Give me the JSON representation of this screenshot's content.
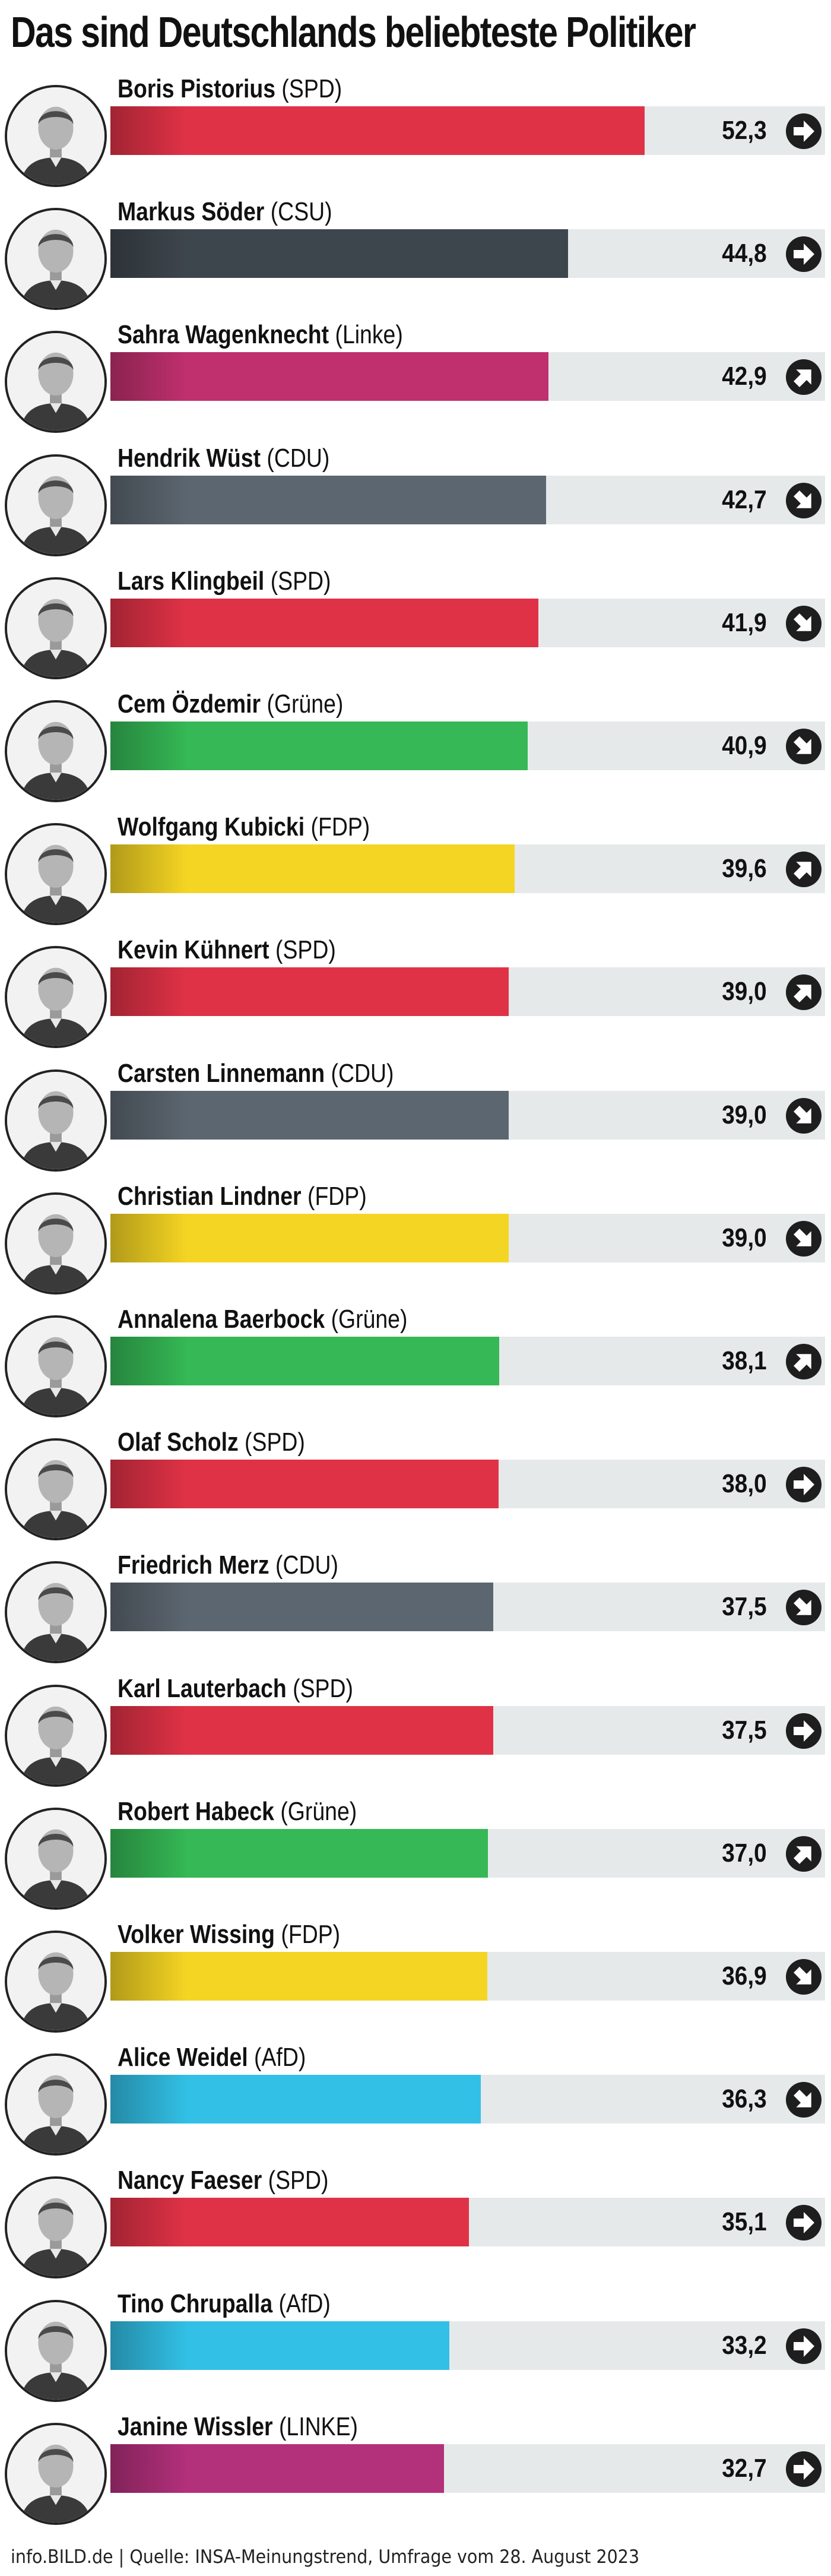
{
  "title": "Das sind Deutschlands beliebteste Politiker",
  "source": "info.BILD.de | Quelle: INSA-Meinungstrend, Umfrage vom 28. August 2023",
  "colors": {
    "SPD": "#e03246",
    "CSU": "#3e464d",
    "Linke": "#c0306e",
    "CDU": "#5c6670",
    "Grüne": "#35b855",
    "FDP": "#f5d523",
    "AfD": "#32c0e6",
    "LINKE": "#b3307b",
    "track": "#e6e9ea",
    "arrow_bg": "#1e1e1e"
  },
  "chart_data": {
    "type": "bar",
    "orientation": "horizontal",
    "title": "Das sind Deutschlands beliebteste Politiker",
    "xlim": [
      0,
      70
    ],
    "grid": false,
    "rows": [
      {
        "name": "Boris Pistorius",
        "party": "(SPD)",
        "party_key": "SPD",
        "value": 52.3,
        "value_label": "52,3",
        "trend": "right",
        "trend_icon": "arrow-right-icon"
      },
      {
        "name": "Markus Söder",
        "party": "(CSU)",
        "party_key": "CSU",
        "value": 44.8,
        "value_label": "44,8",
        "trend": "right",
        "trend_icon": "arrow-right-icon"
      },
      {
        "name": "Sahra Wagenknecht",
        "party": "(Linke)",
        "party_key": "Linke",
        "value": 42.9,
        "value_label": "42,9",
        "trend": "up",
        "trend_icon": "arrow-up-right-icon"
      },
      {
        "name": "Hendrik Wüst",
        "party": "(CDU)",
        "party_key": "CDU",
        "value": 42.7,
        "value_label": "42,7",
        "trend": "down",
        "trend_icon": "arrow-down-right-icon"
      },
      {
        "name": "Lars Klingbeil",
        "party": "(SPD)",
        "party_key": "SPD",
        "value": 41.9,
        "value_label": "41,9",
        "trend": "down",
        "trend_icon": "arrow-down-right-icon"
      },
      {
        "name": "Cem Özdemir",
        "party": "(Grüne)",
        "party_key": "Grüne",
        "value": 40.9,
        "value_label": "40,9",
        "trend": "down",
        "trend_icon": "arrow-down-right-icon"
      },
      {
        "name": "Wolfgang Kubicki",
        "party": "(FDP)",
        "party_key": "FDP",
        "value": 39.6,
        "value_label": "39,6",
        "trend": "up",
        "trend_icon": "arrow-up-right-icon"
      },
      {
        "name": "Kevin Kühnert",
        "party": "(SPD)",
        "party_key": "SPD",
        "value": 39.0,
        "value_label": "39,0",
        "trend": "up",
        "trend_icon": "arrow-up-right-icon"
      },
      {
        "name": "Carsten Linnemann",
        "party": "(CDU)",
        "party_key": "CDU",
        "value": 39.0,
        "value_label": "39,0",
        "trend": "down",
        "trend_icon": "arrow-down-right-icon"
      },
      {
        "name": "Christian Lindner",
        "party": "(FDP)",
        "party_key": "FDP",
        "value": 39.0,
        "value_label": "39,0",
        "trend": "down",
        "trend_icon": "arrow-down-right-icon"
      },
      {
        "name": "Annalena Baerbock",
        "party": "(Grüne)",
        "party_key": "Grüne",
        "value": 38.1,
        "value_label": "38,1",
        "trend": "up",
        "trend_icon": "arrow-up-right-icon"
      },
      {
        "name": "Olaf Scholz",
        "party": "(SPD)",
        "party_key": "SPD",
        "value": 38.0,
        "value_label": "38,0",
        "trend": "right",
        "trend_icon": "arrow-right-icon"
      },
      {
        "name": "Friedrich Merz",
        "party": "(CDU)",
        "party_key": "CDU",
        "value": 37.5,
        "value_label": "37,5",
        "trend": "down",
        "trend_icon": "arrow-down-right-icon"
      },
      {
        "name": "Karl Lauterbach",
        "party": "(SPD)",
        "party_key": "SPD",
        "value": 37.5,
        "value_label": "37,5",
        "trend": "right",
        "trend_icon": "arrow-right-icon"
      },
      {
        "name": "Robert Habeck",
        "party": "(Grüne)",
        "party_key": "Grüne",
        "value": 37.0,
        "value_label": "37,0",
        "trend": "up",
        "trend_icon": "arrow-up-right-icon"
      },
      {
        "name": "Volker Wissing",
        "party": "(FDP)",
        "party_key": "FDP",
        "value": 36.9,
        "value_label": "36,9",
        "trend": "down",
        "trend_icon": "arrow-down-right-icon"
      },
      {
        "name": "Alice Weidel",
        "party": "(AfD)",
        "party_key": "AfD",
        "value": 36.3,
        "value_label": "36,3",
        "trend": "down",
        "trend_icon": "arrow-down-right-icon"
      },
      {
        "name": "Nancy Faeser",
        "party": "(SPD)",
        "party_key": "SPD",
        "value": 35.1,
        "value_label": "35,1",
        "trend": "right",
        "trend_icon": "arrow-right-icon"
      },
      {
        "name": "Tino Chrupalla",
        "party": "(AfD)",
        "party_key": "AfD",
        "value": 33.2,
        "value_label": "33,2",
        "trend": "right",
        "trend_icon": "arrow-right-icon"
      },
      {
        "name": "Janine Wissler",
        "party": "(LINKE)",
        "party_key": "LINKE",
        "value": 32.7,
        "value_label": "32,7",
        "trend": "right",
        "trend_icon": "arrow-right-icon"
      }
    ]
  }
}
